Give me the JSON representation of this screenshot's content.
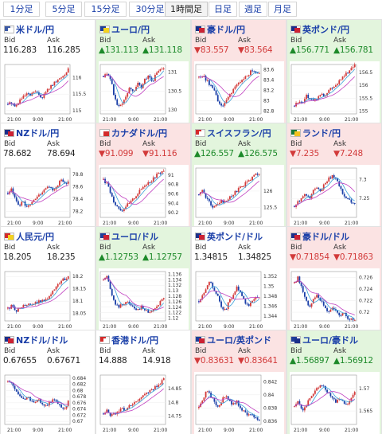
{
  "tabs": [
    {
      "label": "1分足",
      "active": false
    },
    {
      "label": "5分足",
      "active": false
    },
    {
      "label": "15分足",
      "active": false
    },
    {
      "label": "30分足",
      "active": false
    },
    {
      "label": "1時間足",
      "active": true
    },
    {
      "label": "日足",
      "active": false
    },
    {
      "label": "週足",
      "active": false
    },
    {
      "label": "月足",
      "active": false
    }
  ],
  "colors": {
    "up": "#1d8a2a",
    "down": "#d23a3a",
    "up_bg": "#e3f5dd",
    "down_bg": "#fbe3e3",
    "link": "#1a3fa8"
  },
  "bid_label": "Bid",
  "ask_label": "Ask",
  "x_ticks": [
    "21:00",
    "9:00",
    "21:00"
  ],
  "tiles": [
    {
      "name": "米ドル/円",
      "flag": [
        "#3c5aa6",
        "#ffffff"
      ],
      "status": "plain",
      "bid": "116.283",
      "ask": "116.285",
      "bid_arrow": "",
      "ask_arrow": "",
      "chart_data": {
        "type": "line",
        "y_ticks": [
          115,
          115.5,
          116
        ],
        "ylim": [
          114.9,
          116.4
        ],
        "trend": [
          115.2,
          115.25,
          115.1,
          115.3,
          115.4,
          115.5,
          115.45,
          115.6,
          115.5,
          115.4,
          115.55,
          115.7,
          115.8,
          115.9,
          116.0,
          116.1,
          116.28
        ]
      }
    },
    {
      "name": "ユーロ/円",
      "flag": [
        "#1f3f9a",
        "#f4d21f"
      ],
      "status": "up",
      "bid": "131.113",
      "ask": "131.118",
      "bid_arrow": "▲",
      "ask_arrow": "▲",
      "chart_data": {
        "type": "line",
        "y_ticks": [
          130,
          130.5,
          131
        ],
        "ylim": [
          129.9,
          131.2
        ],
        "trend": [
          130.9,
          131.0,
          130.8,
          130.3,
          130.1,
          130.2,
          130.4,
          130.6,
          130.5,
          130.7,
          130.6,
          130.8,
          130.9,
          130.7,
          131.0,
          131.05,
          131.11
        ]
      }
    },
    {
      "name": "豪ドル/円",
      "flag": [
        "#1b2f8a",
        "#cc2233"
      ],
      "status": "down",
      "bid": "83.557",
      "ask": "83.564",
      "bid_arrow": "▼",
      "ask_arrow": "▼",
      "chart_data": {
        "type": "line",
        "y_ticks": [
          82.8,
          83,
          83.2,
          83.4,
          83.6
        ],
        "ylim": [
          82.75,
          83.7
        ],
        "trend": [
          83.45,
          83.5,
          83.4,
          83.3,
          83.2,
          83.0,
          82.9,
          82.95,
          83.1,
          83.2,
          83.3,
          83.35,
          83.45,
          83.5,
          83.6,
          83.55,
          83.56
        ]
      }
    },
    {
      "name": "英ポンド/円",
      "flag": [
        "#1b2f8a",
        "#cc2233"
      ],
      "status": "up",
      "bid": "156.771",
      "ask": "156.781",
      "bid_arrow": "▲",
      "ask_arrow": "▲",
      "chart_data": {
        "type": "line",
        "y_ticks": [
          155,
          155.5,
          156,
          156.5
        ],
        "ylim": [
          154.9,
          156.8
        ],
        "trend": [
          155.2,
          155.4,
          155.3,
          155.6,
          155.5,
          155.4,
          155.5,
          155.7,
          155.6,
          155.8,
          155.9,
          156.0,
          156.2,
          156.3,
          156.5,
          156.6,
          156.77
        ]
      }
    },
    {
      "name": "NZドル/円",
      "flag": [
        "#1b2f8a",
        "#cc2233"
      ],
      "status": "plain",
      "bid": "78.682",
      "ask": "78.694",
      "bid_arrow": "",
      "ask_arrow": "",
      "chart_data": {
        "type": "line",
        "y_ticks": [
          78.2,
          78.4,
          78.6,
          78.8
        ],
        "ylim": [
          78.1,
          78.9
        ],
        "trend": [
          78.5,
          78.55,
          78.4,
          78.3,
          78.35,
          78.25,
          78.3,
          78.4,
          78.45,
          78.5,
          78.55,
          78.6,
          78.55,
          78.6,
          78.7,
          78.65,
          78.68
        ]
      }
    },
    {
      "name": "カナダドル/円",
      "flag": [
        "#ffffff",
        "#d42a2a"
      ],
      "status": "down",
      "bid": "91.099",
      "ask": "91.116",
      "bid_arrow": "▼",
      "ask_arrow": "▼",
      "chart_data": {
        "type": "line",
        "y_ticks": [
          90.2,
          90.4,
          90.6,
          90.8,
          91
        ],
        "ylim": [
          90.1,
          91.15
        ],
        "trend": [
          90.9,
          90.8,
          90.6,
          90.4,
          90.3,
          90.25,
          90.35,
          90.4,
          90.5,
          90.6,
          90.7,
          90.8,
          90.85,
          90.9,
          91.0,
          91.05,
          91.1
        ]
      }
    },
    {
      "name": "スイスフラン/円",
      "flag": [
        "#d42a2a",
        "#ffffff"
      ],
      "status": "up",
      "bid": "126.557",
      "ask": "126.575",
      "bid_arrow": "▲",
      "ask_arrow": "▲",
      "chart_data": {
        "type": "line",
        "y_ticks": [
          125.5,
          126
        ],
        "ylim": [
          125.2,
          126.7
        ],
        "trend": [
          125.9,
          126.0,
          125.8,
          125.6,
          125.5,
          125.6,
          125.7,
          125.65,
          125.8,
          125.9,
          126.0,
          126.1,
          126.2,
          126.3,
          126.4,
          126.5,
          126.56
        ]
      }
    },
    {
      "name": "ランド/円",
      "flag": [
        "#1a7a3a",
        "#f4c21f"
      ],
      "status": "down",
      "bid": "7.235",
      "ask": "7.248",
      "bid_arrow": "▼",
      "ask_arrow": "▼",
      "chart_data": {
        "type": "line",
        "y_ticks": [
          7.25,
          7.3
        ],
        "ylim": [
          7.2,
          7.33
        ],
        "trend": [
          7.23,
          7.24,
          7.25,
          7.26,
          7.25,
          7.27,
          7.28,
          7.27,
          7.29,
          7.3,
          7.31,
          7.3,
          7.28,
          7.26,
          7.25,
          7.24,
          7.235
        ]
      }
    },
    {
      "name": "人民元/円",
      "flag": [
        "#d42a2a",
        "#f4d21f"
      ],
      "status": "plain",
      "bid": "18.205",
      "ask": "18.235",
      "bid_arrow": "",
      "ask_arrow": "",
      "chart_data": {
        "type": "line",
        "y_ticks": [
          18.05,
          18.1,
          18.15,
          18.2
        ],
        "ylim": [
          18.02,
          18.22
        ],
        "trend": [
          18.07,
          18.08,
          18.06,
          18.07,
          18.08,
          18.09,
          18.08,
          18.09,
          18.1,
          18.1,
          18.11,
          18.12,
          18.14,
          18.16,
          18.18,
          18.19,
          18.2
        ]
      }
    },
    {
      "name": "ユーロ/ドル",
      "flag": [
        "#1f3f9a",
        "#cc2233"
      ],
      "status": "up",
      "bid": "1.12753",
      "ask": "1.12757",
      "bid_arrow": "▲",
      "ask_arrow": "▲",
      "chart_data": {
        "type": "line",
        "y_ticks": [
          1.12,
          1.122,
          1.124,
          1.126,
          1.128,
          1.13,
          1.132,
          1.134,
          1.136
        ],
        "ylim": [
          1.119,
          1.137
        ],
        "trend": [
          1.134,
          1.135,
          1.13,
          1.125,
          1.124,
          1.125,
          1.126,
          1.125,
          1.124,
          1.123,
          1.124,
          1.123,
          1.122,
          1.123,
          1.124,
          1.126,
          1.1275
        ]
      }
    },
    {
      "name": "英ポンド/ドル",
      "flag": [
        "#1b2f8a",
        "#cc2233"
      ],
      "status": "plain",
      "bid": "1.34815",
      "ask": "1.34825",
      "bid_arrow": "",
      "ask_arrow": "",
      "chart_data": {
        "type": "line",
        "y_ticks": [
          1.344,
          1.346,
          1.348,
          1.35,
          1.352
        ],
        "ylim": [
          1.343,
          1.353
        ],
        "trend": [
          1.347,
          1.348,
          1.35,
          1.351,
          1.349,
          1.348,
          1.346,
          1.345,
          1.347,
          1.348,
          1.35,
          1.349,
          1.347,
          1.346,
          1.347,
          1.348,
          1.348
        ]
      }
    },
    {
      "name": "豪ドル/ドル",
      "flag": [
        "#1b2f8a",
        "#cc2233"
      ],
      "status": "down",
      "bid": "0.71854",
      "ask": "0.71863",
      "bid_arrow": "▼",
      "ask_arrow": "▼",
      "chart_data": {
        "type": "line",
        "y_ticks": [
          0.72,
          0.722,
          0.724,
          0.726
        ],
        "ylim": [
          0.7185,
          0.727
        ],
        "trend": [
          0.725,
          0.726,
          0.724,
          0.722,
          0.721,
          0.722,
          0.723,
          0.722,
          0.721,
          0.72,
          0.721,
          0.72,
          0.7195,
          0.72,
          0.719,
          0.7188,
          0.7185
        ]
      }
    },
    {
      "name": "NZドル/ドル",
      "flag": [
        "#1b2f8a",
        "#cc2233"
      ],
      "status": "plain",
      "bid": "0.67655",
      "ask": "0.67671",
      "bid_arrow": "",
      "ask_arrow": "",
      "chart_data": {
        "type": "line",
        "y_ticks": [
          0.67,
          0.672,
          0.674,
          0.676,
          0.678,
          0.68,
          0.682,
          0.684
        ],
        "ylim": [
          0.669,
          0.685
        ],
        "trend": [
          0.683,
          0.682,
          0.68,
          0.678,
          0.677,
          0.678,
          0.677,
          0.676,
          0.677,
          0.676,
          0.675,
          0.676,
          0.677,
          0.676,
          0.675,
          0.674,
          0.6766
        ]
      }
    },
    {
      "name": "香港ドル/円",
      "flag": [
        "#d42a2a",
        "#ffffff"
      ],
      "status": "plain",
      "bid": "14.888",
      "ask": "14.918",
      "bid_arrow": "",
      "ask_arrow": "",
      "chart_data": {
        "type": "line",
        "y_ticks": [
          14.75,
          14.8,
          14.85
        ],
        "ylim": [
          14.72,
          14.9
        ],
        "trend": [
          14.76,
          14.77,
          14.75,
          14.76,
          14.77,
          14.78,
          14.77,
          14.79,
          14.8,
          14.81,
          14.82,
          14.83,
          14.84,
          14.85,
          14.86,
          14.87,
          14.89
        ]
      }
    },
    {
      "name": "ユーロ/英ポンド",
      "flag": [
        "#1f3f9a",
        "#cc2233"
      ],
      "status": "down",
      "bid": "0.83631",
      "ask": "0.83641",
      "bid_arrow": "▼",
      "ask_arrow": "▼",
      "chart_data": {
        "type": "line",
        "y_ticks": [
          0.836,
          0.838,
          0.84,
          0.842
        ],
        "ylim": [
          0.8355,
          0.843
        ],
        "trend": [
          0.838,
          0.839,
          0.841,
          0.84,
          0.839,
          0.838,
          0.839,
          0.84,
          0.839,
          0.8385,
          0.839,
          0.838,
          0.8375,
          0.837,
          0.8368,
          0.8365,
          0.8363
        ]
      }
    },
    {
      "name": "ユーロ/豪ドル",
      "flag": [
        "#1f3f9a",
        "#1b2f8a"
      ],
      "status": "up",
      "bid": "1.56897",
      "ask": "1.56912",
      "bid_arrow": "▲",
      "ask_arrow": "▲",
      "chart_data": {
        "type": "line",
        "y_ticks": [
          1.565,
          1.57
        ],
        "ylim": [
          1.562,
          1.573
        ],
        "trend": [
          1.566,
          1.567,
          1.565,
          1.566,
          1.568,
          1.569,
          1.57,
          1.571,
          1.57,
          1.569,
          1.568,
          1.567,
          1.568,
          1.567,
          1.566,
          1.568,
          1.569
        ]
      }
    }
  ]
}
